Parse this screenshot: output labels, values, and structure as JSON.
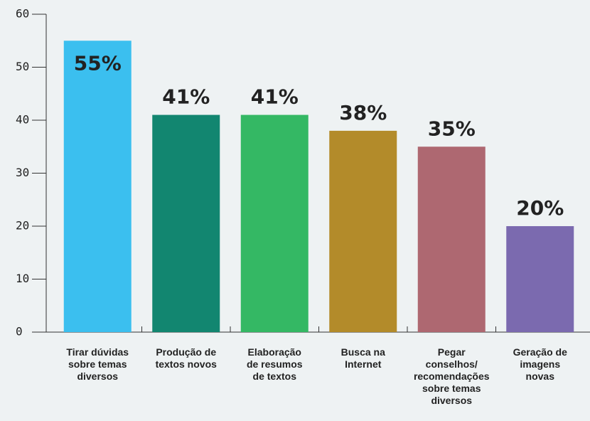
{
  "chart_data": {
    "type": "bar",
    "categories": [
      "Tirar dúvidas\nsobre temas\ndiversos",
      "Produção de\ntextos novos",
      "Elaboração\nde resumos\nde textos",
      "Busca na\nInternet",
      "Pegar\nconselhos/\nrecomendações\nsobre temas\ndiversos",
      "Geração de\nimagens\nnovas"
    ],
    "values": [
      55,
      41,
      41,
      38,
      35,
      20
    ],
    "value_labels": [
      "55%",
      "41%",
      "41%",
      "38%",
      "35%",
      "20%"
    ],
    "colors": [
      "#3bbfef",
      "#128670",
      "#34b864",
      "#b38b2a",
      "#ae6871",
      "#7b6aaf"
    ],
    "ylim": [
      0,
      60
    ],
    "yticks": [
      0,
      10,
      20,
      30,
      40,
      50,
      60
    ]
  }
}
